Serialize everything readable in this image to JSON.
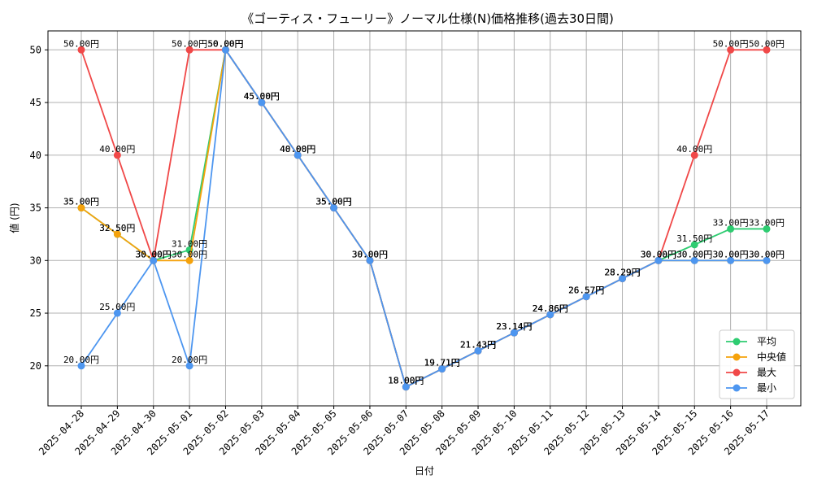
{
  "chart_data": {
    "type": "line",
    "title": "《ゴーティス・フューリー》ノーマル仕様(N)価格推移(過去30日間)",
    "xlabel": "日付",
    "ylabel": "値 (円)",
    "ylim": [
      16.2,
      51.8
    ],
    "yticks": [
      20,
      25,
      30,
      35,
      40,
      45,
      50
    ],
    "grid": true,
    "legend_position": "lower-right",
    "value_suffix": "円",
    "categories": [
      "2025-04-28",
      "2025-04-29",
      "2025-04-30",
      "2025-05-01",
      "2025-05-02",
      "2025-05-03",
      "2025-05-04",
      "2025-05-05",
      "2025-05-06",
      "2025-05-07",
      "2025-05-08",
      "2025-05-09",
      "2025-05-10",
      "2025-05-11",
      "2025-05-12",
      "2025-05-13",
      "2025-05-14",
      "2025-05-15",
      "2025-05-16",
      "2025-05-17"
    ],
    "series": [
      {
        "name": "平均",
        "color": "#2ecc71",
        "values": [
          35.0,
          32.5,
          30.0,
          31.0,
          50.0,
          45.0,
          40.0,
          35.0,
          30.0,
          18.0,
          19.71,
          21.43,
          23.14,
          24.86,
          26.57,
          28.29,
          30.0,
          31.5,
          33.0,
          33.0
        ]
      },
      {
        "name": "中央値",
        "color": "#f5a20c",
        "values": [
          35.0,
          32.5,
          30.0,
          30.0,
          50.0,
          45.0,
          40.0,
          35.0,
          30.0,
          18.0,
          19.71,
          21.43,
          23.14,
          24.86,
          26.57,
          28.29,
          30.0,
          30.0,
          30.0,
          30.0
        ]
      },
      {
        "name": "最大",
        "color": "#f04848",
        "values": [
          50.0,
          40.0,
          30.0,
          50.0,
          50.0,
          45.0,
          40.0,
          35.0,
          30.0,
          18.0,
          19.71,
          21.43,
          23.14,
          24.86,
          26.57,
          28.29,
          30.0,
          40.0,
          50.0,
          50.0
        ]
      },
      {
        "name": "最小",
        "color": "#4d96f0",
        "values": [
          20.0,
          25.0,
          30.0,
          20.0,
          50.0,
          45.0,
          40.0,
          35.0,
          30.0,
          18.0,
          19.71,
          21.43,
          23.14,
          24.86,
          26.57,
          28.29,
          30.0,
          30.0,
          30.0,
          30.0
        ]
      }
    ]
  }
}
